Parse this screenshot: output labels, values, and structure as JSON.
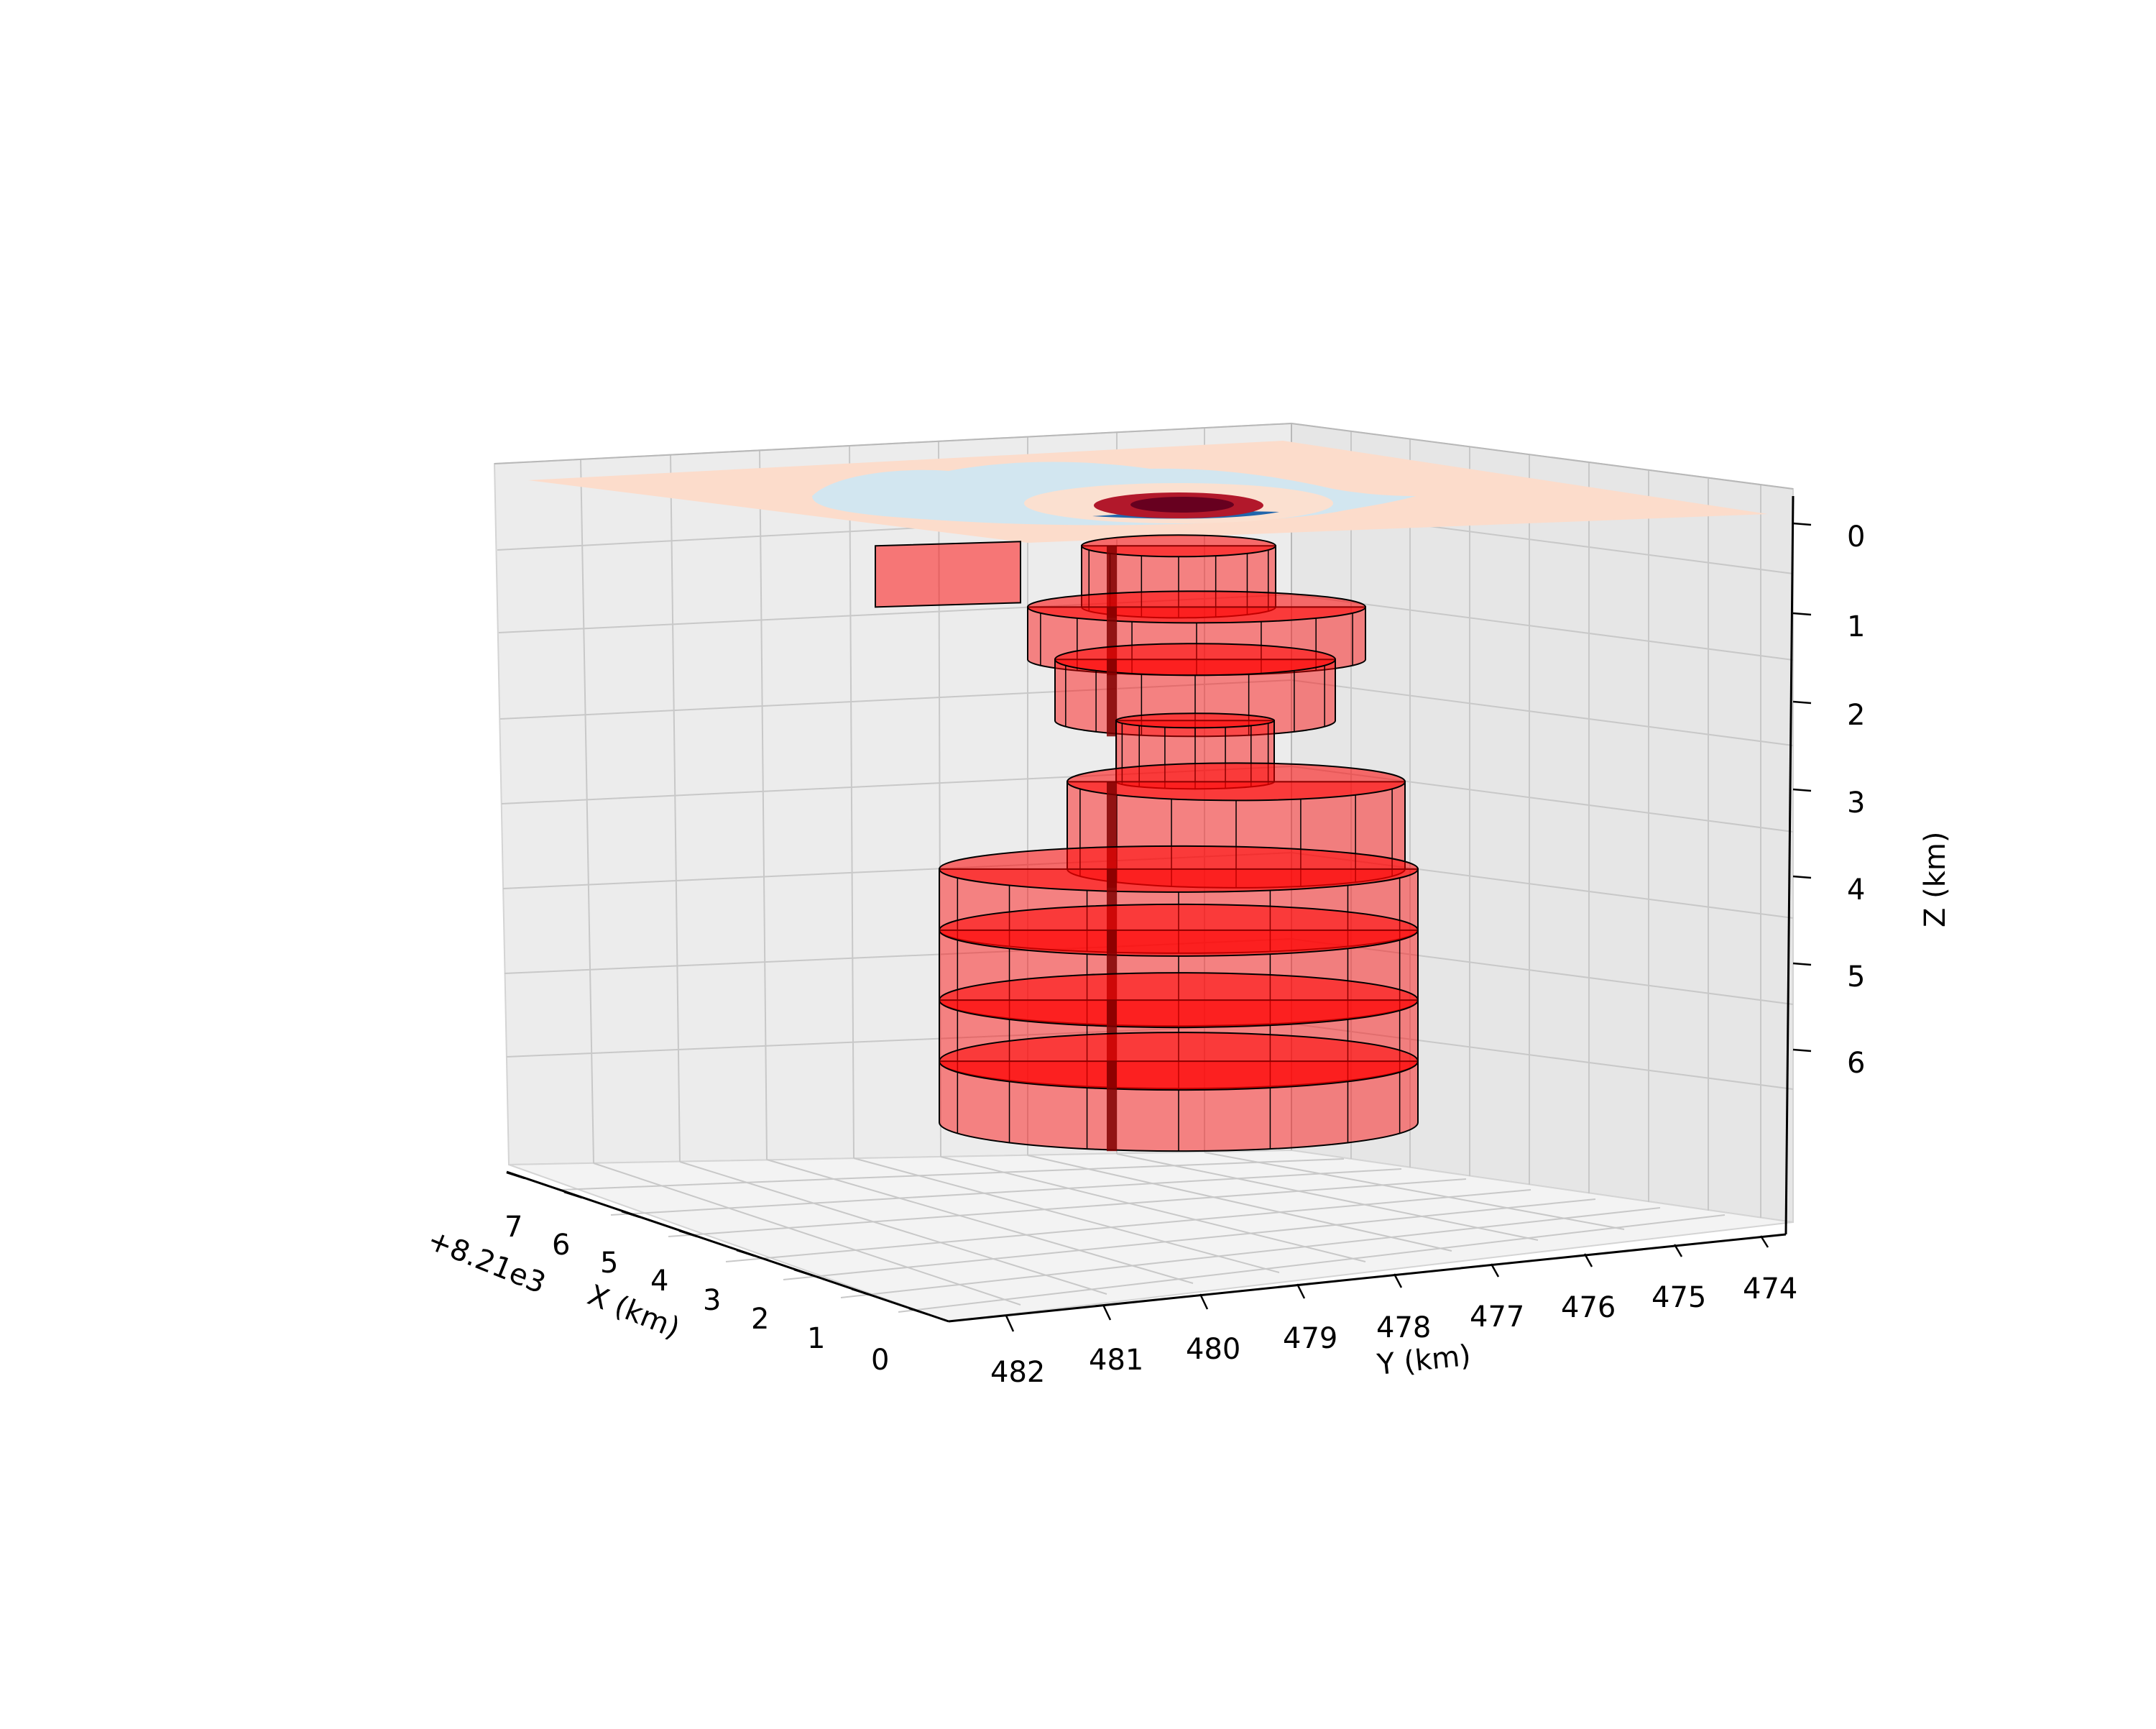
{
  "chart_data": {
    "type": "3d-model",
    "axes": {
      "x": {
        "label": "X (km)",
        "offset_text": "+8.21e3",
        "ticks": [
          "0",
          "1",
          "2",
          "3",
          "4",
          "5",
          "6",
          "7"
        ]
      },
      "y": {
        "label": "Y (km)",
        "ticks": [
          "482",
          "481",
          "480",
          "479",
          "478",
          "477",
          "476",
          "475",
          "474"
        ]
      },
      "z": {
        "label": "Z (km)",
        "ticks": [
          "0",
          "1",
          "2",
          "3",
          "4",
          "5",
          "6"
        ],
        "inverted": true
      }
    },
    "grid": true,
    "surface": {
      "z": 0,
      "colormap_colors": [
        "#fcdccb",
        "#d2e6f0",
        "#fbe0d0",
        "#b2182b",
        "#67001f",
        "#2166ac"
      ]
    },
    "prism_color": "#ff0000",
    "prisms": [
      {
        "z_top": 0.2,
        "z_bottom": 0.9
      },
      {
        "z_top": 0.9,
        "z_bottom": 1.5
      },
      {
        "z_top": 1.5,
        "z_bottom": 2.2
      },
      {
        "z_top": 2.2,
        "z_bottom": 2.9
      },
      {
        "z_top": 2.9,
        "z_bottom": 3.9
      },
      {
        "z_top": 3.9,
        "z_bottom": 4.6
      },
      {
        "z_top": 4.6,
        "z_bottom": 5.4
      },
      {
        "z_top": 5.4,
        "z_bottom": 6.1
      },
      {
        "z_top": 6.1,
        "z_bottom": 6.8
      }
    ]
  }
}
